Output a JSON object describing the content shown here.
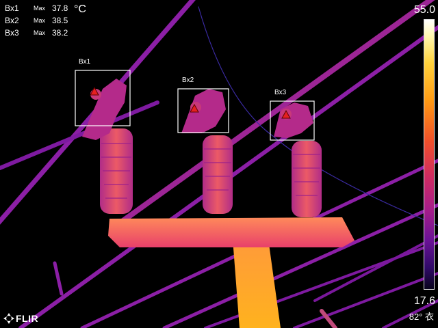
{
  "readouts": [
    {
      "name": "Bx1",
      "kind": "Max",
      "value": "37.8"
    },
    {
      "name": "Bx2",
      "kind": "Max",
      "value": "38.5"
    },
    {
      "name": "Bx3",
      "kind": "Max",
      "value": "38.2"
    }
  ],
  "unit": "°C",
  "boxes": [
    {
      "label": "Bx1"
    },
    {
      "label": "Bx2"
    },
    {
      "label": "Bx3"
    }
  ],
  "scale": {
    "max": "55.0",
    "min": "17.6"
  },
  "logo": {
    "text": "FLIR"
  },
  "status": {
    "emissivity": "82° 衣"
  },
  "colors": {
    "hot": "#ffcc44",
    "warm": "#ff7a1a",
    "mid": "#c42a8a",
    "cool": "#8c1fa6",
    "background": "#000000",
    "marker": "#e52020"
  }
}
